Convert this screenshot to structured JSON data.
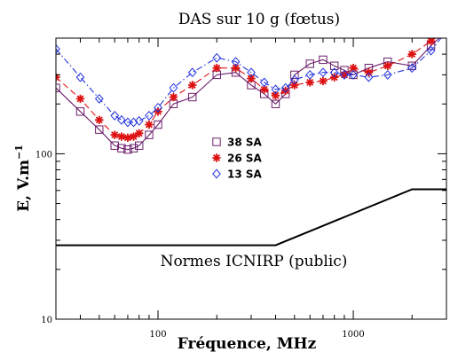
{
  "chart_data": {
    "type": "line",
    "title": "DAS sur 10 g (fœtus)",
    "xlabel": "Fréquence, MHz",
    "ylabel_main": "E, V.m",
    "ylabel_exp": "−1",
    "x_scale": "log",
    "y_scale": "log",
    "xlim": [
      30,
      3000
    ],
    "ylim": [
      10,
      500
    ],
    "x_ticks": [
      {
        "value": 100,
        "label": "100"
      },
      {
        "value": 1000,
        "label": "1000"
      }
    ],
    "y_ticks": [
      {
        "value": 10,
        "label": "10"
      },
      {
        "value": 100,
        "label": "100"
      }
    ],
    "legend_position": "center",
    "series": [
      {
        "name": "38 SA",
        "color": "#6b1f6b",
        "marker": "square",
        "dash": "solid",
        "x": [
          30,
          40,
          50,
          60,
          65,
          70,
          75,
          80,
          90,
          100,
          120,
          150,
          200,
          250,
          300,
          350,
          400,
          450,
          500,
          600,
          700,
          800,
          900,
          1000,
          1200,
          1500,
          2000,
          2500,
          3000
        ],
        "y": [
          250,
          180,
          140,
          112,
          108,
          106,
          108,
          112,
          130,
          150,
          200,
          220,
          300,
          310,
          260,
          230,
          200,
          230,
          300,
          350,
          370,
          340,
          320,
          300,
          330,
          360,
          340,
          450,
          550
        ]
      },
      {
        "name": "26 SA",
        "color": "#dd1111",
        "marker": "asterisk",
        "dash": "dashed",
        "x": [
          30,
          40,
          50,
          60,
          65,
          70,
          75,
          80,
          90,
          100,
          120,
          150,
          200,
          250,
          300,
          350,
          400,
          450,
          500,
          600,
          700,
          800,
          900,
          1000,
          1200,
          1500,
          2000,
          2500,
          3000
        ],
        "y": [
          290,
          215,
          160,
          130,
          127,
          125,
          127,
          133,
          150,
          180,
          220,
          260,
          330,
          330,
          285,
          245,
          225,
          240,
          260,
          270,
          275,
          290,
          300,
          330,
          310,
          340,
          400,
          480,
          550
        ]
      },
      {
        "name": "13 SA",
        "color": "#2233dd",
        "marker": "diamond",
        "dash": "dashdot",
        "x": [
          30,
          40,
          50,
          60,
          65,
          70,
          75,
          80,
          90,
          100,
          120,
          150,
          200,
          250,
          300,
          350,
          400,
          450,
          500,
          600,
          700,
          800,
          900,
          1000,
          1200,
          1500,
          2000,
          2500,
          3000
        ],
        "y": [
          430,
          290,
          215,
          170,
          160,
          155,
          155,
          158,
          170,
          190,
          250,
          310,
          380,
          360,
          310,
          270,
          245,
          250,
          280,
          300,
          310,
          310,
          300,
          300,
          290,
          300,
          330,
          420,
          550
        ]
      }
    ],
    "reference": {
      "name": "Normes ICNIRP (public)",
      "color": "#000000",
      "x": [
        30,
        400,
        2000,
        3000
      ],
      "y": [
        28,
        28,
        61,
        61
      ]
    }
  }
}
